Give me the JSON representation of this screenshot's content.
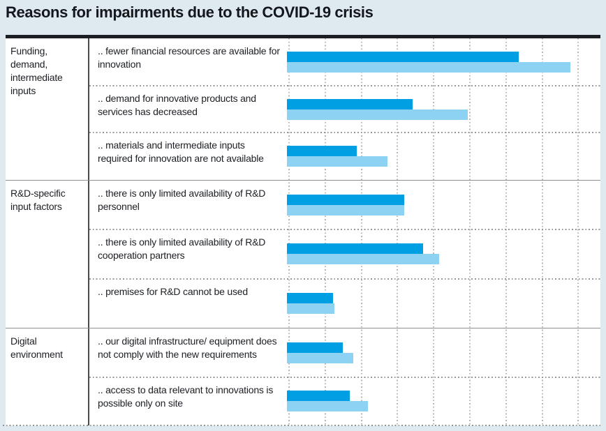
{
  "title": "Reasons for impairments due to the COVID-19 crisis",
  "colors": {
    "page_background": "#dfe9f0",
    "chart_background": "#ffffff",
    "top_border": "#1b1e22",
    "bar_dark": "#009fe3",
    "bar_light": "#8dd2f3",
    "gridline": "#b5b5b5",
    "separator_solid": "#8f8f8f",
    "separator_dotted": "#969696",
    "column_divider": "#4a4a4a",
    "text": "#1c1f24"
  },
  "chart_data": {
    "type": "bar",
    "orientation": "horizontal",
    "title": "Reasons for impairments due to the COVID-19 crisis",
    "xlim": [
      0,
      40
    ],
    "gridline_step": 5,
    "grid": "dotted-vertical",
    "axis_tick_labels_visible": false,
    "legend_visible": false,
    "value_note": "axis is unlabeled in the image; values estimated from dotted gridlines assuming 5 units per gridline interval",
    "series": [
      {
        "name": "dark-blue-series",
        "color": "#009fe3",
        "values": [
          32.0,
          17.4,
          9.6,
          16.2,
          18.8,
          6.4,
          7.7,
          8.7
        ]
      },
      {
        "name": "light-blue-series",
        "color": "#8dd2f3",
        "values": [
          39.2,
          25.0,
          13.9,
          16.2,
          21.0,
          6.6,
          9.2,
          11.2
        ]
      }
    ],
    "groups": [
      {
        "category": "Funding, demand, intermediate inputs",
        "items": [
          {
            "label": ".. fewer financial resources are available for innovation"
          },
          {
            "label": ".. demand for innovative products and services has decreased"
          },
          {
            "label": ".. materials and intermediate inputs required for innovation are not available"
          }
        ]
      },
      {
        "category": "R&D-specific input factors",
        "items": [
          {
            "label": ".. there is only limited availability of R&D personnel"
          },
          {
            "label": ".. there is only limited availability of R&D cooperation partners"
          },
          {
            "label": ".. premises for R&D cannot be used"
          }
        ]
      },
      {
        "category": "Digital environment",
        "items": [
          {
            "label": ".. our digital infrastructure/ equipment does not comply with the new requirements"
          },
          {
            "label": ".. access to data relevant to innovations is possible only on site"
          }
        ]
      }
    ]
  }
}
